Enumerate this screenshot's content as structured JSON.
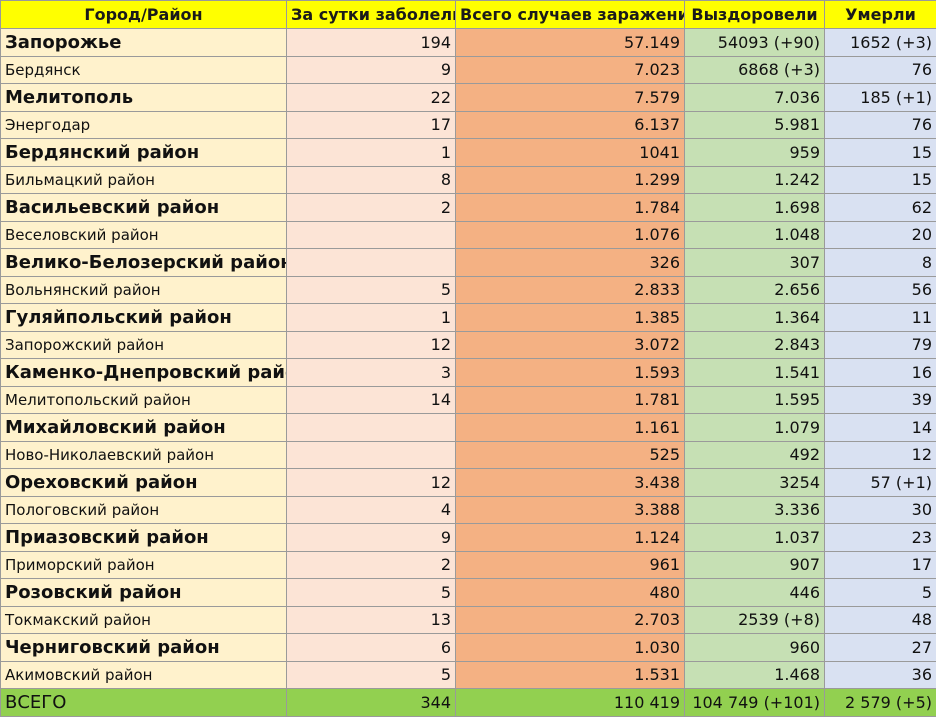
{
  "colors": {
    "header": "#ffff00",
    "city_col": "#fff2cc",
    "daily_col": "#fce4d6",
    "total_col": "#f4b183",
    "recovered_col": "#c6e0b4",
    "died_col": "#d9e1f2",
    "total_row": "#92d050"
  },
  "table": {
    "headers": [
      "Город/Район",
      "За сутки заболели",
      "Всего случаев заражения",
      "Выздоровели",
      "Умерли"
    ],
    "rows": [
      {
        "name": "Запорожье",
        "daily": "194",
        "total": "57.149",
        "recovered": "54093 (+90)",
        "died": "1652 (+3)",
        "size": "big"
      },
      {
        "name": "Бердянск",
        "daily": "9",
        "total": "7.023",
        "recovered": "6868 (+3)",
        "died": "76",
        "size": "small"
      },
      {
        "name": "Мелитополь",
        "daily": "22",
        "total": "7.579",
        "recovered": "7.036",
        "died": "185 (+1)",
        "size": "big"
      },
      {
        "name": "Энергодар",
        "daily": "17",
        "total": "6.137",
        "recovered": "5.981",
        "died": "76",
        "size": "small"
      },
      {
        "name": "Бердянский район",
        "daily": "1",
        "total": "1041",
        "recovered": "959",
        "died": "15",
        "size": "big"
      },
      {
        "name": "Бильмацкий район",
        "daily": "8",
        "total": "1.299",
        "recovered": "1.242",
        "died": "15",
        "size": "small"
      },
      {
        "name": "Васильевский район",
        "daily": "2",
        "total": "1.784",
        "recovered": "1.698",
        "died": "62",
        "size": "big"
      },
      {
        "name": "Веселовский район",
        "daily": "",
        "total": "1.076",
        "recovered": "1.048",
        "died": "20",
        "size": "small"
      },
      {
        "name": "Велико-Белозерский район",
        "daily": "",
        "total": "326",
        "recovered": "307",
        "died": "8",
        "size": "big"
      },
      {
        "name": "Вольнянский район",
        "daily": "5",
        "total": "2.833",
        "recovered": "2.656",
        "died": "56",
        "size": "small"
      },
      {
        "name": "Гуляйпольский район",
        "daily": "1",
        "total": "1.385",
        "recovered": "1.364",
        "died": "11",
        "size": "big"
      },
      {
        "name": "Запорожский район",
        "daily": "12",
        "total": "3.072",
        "recovered": "2.843",
        "died": "79",
        "size": "small"
      },
      {
        "name": "Каменко-Днепровский район",
        "daily": "3",
        "total": "1.593",
        "recovered": "1.541",
        "died": "16",
        "size": "big"
      },
      {
        "name": "Мелитопольский район",
        "daily": "14",
        "total": "1.781",
        "recovered": "1.595",
        "died": "39",
        "size": "small"
      },
      {
        "name": "Михайловский район",
        "daily": "",
        "total": "1.161",
        "recovered": "1.079",
        "died": "14",
        "size": "big"
      },
      {
        "name": "Ново-Николаевский район",
        "daily": "",
        "total": "525",
        "recovered": "492",
        "died": "12",
        "size": "small"
      },
      {
        "name": "Ореховский район",
        "daily": "12",
        "total": "3.438",
        "recovered": "3254",
        "died": "57  (+1)",
        "size": "big"
      },
      {
        "name": "Пологовский район",
        "daily": "4",
        "total": "3.388",
        "recovered": "3.336",
        "died": "30",
        "size": "small"
      },
      {
        "name": "Приазовский район",
        "daily": "9",
        "total": "1.124",
        "recovered": "1.037",
        "died": "23",
        "size": "big"
      },
      {
        "name": "Приморский район",
        "daily": "2",
        "total": "961",
        "recovered": "907",
        "died": "17",
        "size": "small"
      },
      {
        "name": "Розовский район",
        "daily": "5",
        "total": "480",
        "recovered": "446",
        "died": "5",
        "size": "big"
      },
      {
        "name": "Токмакский район",
        "daily": "13",
        "total": "2.703",
        "recovered": "2539 (+8)",
        "died": "48",
        "size": "small"
      },
      {
        "name": "Черниговский район",
        "daily": "6",
        "total": "1.030",
        "recovered": "960",
        "died": "27",
        "size": "big"
      },
      {
        "name": "Акимовский район",
        "daily": "5",
        "total": "1.531",
        "recovered": "1.468",
        "died": "36",
        "size": "small"
      }
    ],
    "total_row": {
      "name": "ВСЕГО",
      "daily": "344",
      "total": "110 419",
      "recovered": "104 749 (+101)",
      "died": "2 579 (+5)"
    }
  }
}
